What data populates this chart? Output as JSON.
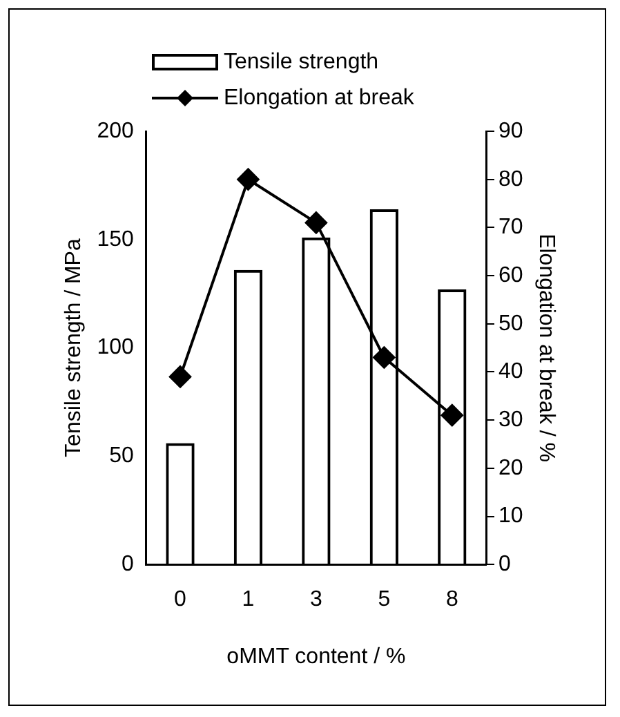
{
  "chart_data": {
    "type": "bar",
    "xlabel": "oMMT content / %",
    "ylabel": "Tensile strength / MPa",
    "y2label": "Elongation at break / %",
    "categories": [
      "0",
      "1",
      "3",
      "5",
      "8"
    ],
    "series": [
      {
        "name": "Tensile strength",
        "color": "#000000",
        "values": [
          56,
          136,
          151,
          164,
          127
        ]
      },
      {
        "name": "Elongation at break",
        "type": "line",
        "color": "#000000",
        "axis": "y2",
        "values": [
          39,
          80,
          71,
          43,
          31
        ]
      }
    ],
    "ylim": [
      0,
      200
    ],
    "yticks": [
      0,
      50,
      100,
      150,
      200
    ],
    "y2lim": [
      0,
      90
    ],
    "y2ticks": [
      0,
      10,
      20,
      30,
      40,
      50,
      60,
      70,
      80,
      90
    ],
    "legend": "top",
    "marker": "diamond",
    "line_style": "solid",
    "grid": false
  }
}
